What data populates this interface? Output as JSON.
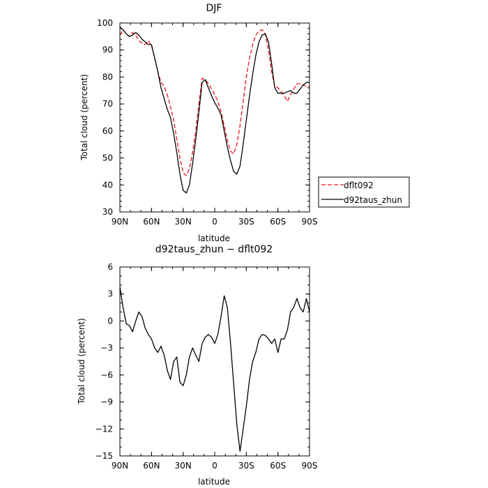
{
  "chart_data": [
    {
      "type": "line",
      "title": "DJF",
      "xlabel": "latitude",
      "ylabel": "Total cloud (percent)",
      "xlim": [
        90,
        -90
      ],
      "ylim": [
        30,
        100
      ],
      "xticks": [
        {
          "value": 90,
          "label": "90N"
        },
        {
          "value": 60,
          "label": "60N"
        },
        {
          "value": 30,
          "label": "30N"
        },
        {
          "value": 0,
          "label": "0"
        },
        {
          "value": -30,
          "label": "30S"
        },
        {
          "value": -60,
          "label": "60S"
        },
        {
          "value": -90,
          "label": "90S"
        }
      ],
      "yticks": [
        {
          "value": 30,
          "label": "30"
        },
        {
          "value": 40,
          "label": "40"
        },
        {
          "value": 50,
          "label": "50"
        },
        {
          "value": 60,
          "label": "60"
        },
        {
          "value": 70,
          "label": "70"
        },
        {
          "value": 80,
          "label": "80"
        },
        {
          "value": 90,
          "label": "90"
        },
        {
          "value": 100,
          "label": "100"
        }
      ],
      "legend": "right",
      "series": [
        {
          "name": "dflt092",
          "color": "#e8141c",
          "dash": "dashed",
          "x": [
            90,
            87,
            84,
            81,
            78,
            75,
            72,
            69,
            66,
            63,
            60,
            57,
            54,
            51,
            48,
            45,
            42,
            39,
            36,
            33,
            30,
            27,
            24,
            21,
            18,
            15,
            12,
            9,
            6,
            3,
            0,
            -3,
            -6,
            -9,
            -12,
            -15,
            -18,
            -21,
            -24,
            -27,
            -30,
            -33,
            -36,
            -39,
            -42,
            -45,
            -48,
            -51,
            -54,
            -57,
            -60,
            -63,
            -66,
            -69,
            -72,
            -75,
            -78,
            -81,
            -84,
            -87,
            -90
          ],
          "y": [
            95.5,
            97.5,
            96.0,
            95.0,
            96.5,
            95.5,
            93.5,
            92.5,
            92.0,
            93.5,
            91.5,
            87.0,
            82.0,
            78.0,
            76.5,
            73.5,
            69.0,
            64.0,
            57.0,
            50.0,
            44.5,
            43.5,
            46.0,
            52.0,
            60.0,
            70.0,
            79.5,
            79.0,
            77.5,
            75.5,
            73.5,
            71.0,
            67.0,
            62.0,
            56.5,
            52.5,
            51.5,
            55.0,
            62.0,
            71.0,
            80.0,
            87.0,
            92.0,
            95.5,
            97.0,
            97.5,
            96.0,
            90.0,
            82.0,
            76.5,
            76.0,
            74.5,
            73.0,
            71.0,
            73.5,
            75.5,
            77.5,
            77.5,
            77.0,
            76.5,
            76.5
          ]
        },
        {
          "name": "d92taus_zhun",
          "color": "#000000",
          "dash": "solid",
          "x": [
            90,
            87,
            84,
            81,
            78,
            75,
            72,
            69,
            66,
            63,
            60,
            57,
            54,
            51,
            48,
            45,
            42,
            39,
            36,
            33,
            30,
            27,
            24,
            21,
            18,
            15,
            12,
            9,
            6,
            3,
            0,
            -3,
            -6,
            -9,
            -12,
            -15,
            -18,
            -21,
            -24,
            -27,
            -30,
            -33,
            -36,
            -39,
            -42,
            -45,
            -48,
            -51,
            -54,
            -57,
            -60,
            -63,
            -66,
            -69,
            -72,
            -75,
            -78,
            -81,
            -84,
            -87,
            -90
          ],
          "y": [
            98.5,
            97.5,
            96.0,
            95.0,
            95.5,
            96.5,
            95.5,
            94.0,
            93.0,
            92.0,
            92.0,
            87.0,
            82.0,
            76.0,
            72.0,
            68.0,
            65.0,
            59.0,
            52.0,
            44.0,
            38.0,
            37.0,
            40.0,
            48.0,
            57.0,
            67.0,
            78.0,
            79.0,
            76.0,
            73.0,
            70.5,
            68.5,
            66.0,
            60.0,
            54.0,
            49.0,
            45.0,
            44.0,
            47.0,
            55.0,
            64.0,
            73.0,
            81.0,
            88.0,
            93.0,
            95.5,
            96.0,
            93.0,
            85.0,
            76.0,
            74.0,
            74.0,
            74.0,
            74.5,
            75.0,
            74.0,
            74.0,
            75.5,
            77.0,
            78.0,
            78.0
          ]
        }
      ]
    },
    {
      "type": "line",
      "title": "d92taus_zhun − dflt092",
      "xlabel": "latitude",
      "ylabel": "Total cloud (percent)",
      "xlim": [
        90,
        -90
      ],
      "ylim": [
        -15,
        6
      ],
      "xticks": [
        {
          "value": 90,
          "label": "90N"
        },
        {
          "value": 60,
          "label": "60N"
        },
        {
          "value": 30,
          "label": "30N"
        },
        {
          "value": 0,
          "label": "0"
        },
        {
          "value": -30,
          "label": "30S"
        },
        {
          "value": -60,
          "label": "60S"
        },
        {
          "value": -90,
          "label": "90S"
        }
      ],
      "yticks": [
        {
          "value": -15,
          "label": "−15"
        },
        {
          "value": -12,
          "label": "−12"
        },
        {
          "value": -9,
          "label": "−9"
        },
        {
          "value": -6,
          "label": "−6"
        },
        {
          "value": -3,
          "label": "−3"
        },
        {
          "value": 0,
          "label": "0"
        },
        {
          "value": 3,
          "label": "3"
        },
        {
          "value": 6,
          "label": "6"
        }
      ],
      "series": [
        {
          "color": "#000000",
          "dash": "solid",
          "x": [
            90,
            87,
            84,
            81,
            78,
            75,
            72,
            69,
            66,
            63,
            60,
            57,
            54,
            51,
            48,
            45,
            42,
            39,
            36,
            33,
            30,
            27,
            24,
            21,
            18,
            15,
            12,
            9,
            6,
            3,
            0,
            -3,
            -6,
            -9,
            -12,
            -15,
            -18,
            -21,
            -24,
            -27,
            -30,
            -33,
            -36,
            -39,
            -42,
            -45,
            -48,
            -51,
            -54,
            -57,
            -60,
            -63,
            -66,
            -69,
            -72,
            -75,
            -78,
            -81,
            -84,
            -87,
            -90
          ],
          "y": [
            3.8,
            1.5,
            -0.3,
            -0.5,
            -1.2,
            0.0,
            1.0,
            0.5,
            -0.8,
            -1.5,
            -2.0,
            -3.0,
            -3.5,
            -2.8,
            -3.8,
            -5.5,
            -6.5,
            -4.5,
            -4.0,
            -6.8,
            -7.2,
            -6.0,
            -4.0,
            -3.0,
            -3.8,
            -4.5,
            -2.5,
            -1.8,
            -1.5,
            -1.8,
            -2.5,
            -1.5,
            0.5,
            2.8,
            1.5,
            -2.5,
            -7.0,
            -11.5,
            -14.5,
            -12.0,
            -9.5,
            -6.5,
            -4.5,
            -3.5,
            -2.0,
            -1.5,
            -1.6,
            -2.0,
            -2.5,
            -2.0,
            -3.5,
            -2.0,
            -2.0,
            -1.0,
            1.0,
            1.5,
            2.5,
            1.5,
            1.0,
            2.5,
            1.0
          ]
        }
      ]
    }
  ]
}
